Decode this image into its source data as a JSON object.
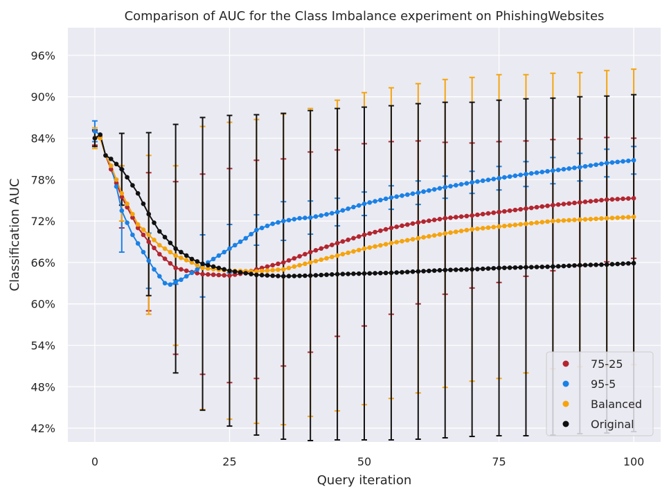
{
  "chart_data": {
    "type": "line",
    "title": "Comparison of AUC for the Class Imbalance experiment on PhishingWebsites",
    "xlabel": "Query iteration",
    "ylabel": "Classification AUC",
    "xlim": [
      -5,
      105
    ],
    "ylim": [
      40,
      100
    ],
    "x_ticks": [
      0,
      25,
      50,
      75,
      100
    ],
    "x_tick_labels": [
      "0",
      "25",
      "50",
      "75",
      "100"
    ],
    "y_ticks": [
      42,
      48,
      54,
      60,
      66,
      72,
      78,
      84,
      90,
      96
    ],
    "y_tick_labels": [
      "42%",
      "48%",
      "54%",
      "60%",
      "66%",
      "72%",
      "78%",
      "84%",
      "90%",
      "96%"
    ],
    "grid": true,
    "legend_position": "bottom-right",
    "errorbar_every": 5,
    "series": [
      {
        "name": "75-25",
        "color": "#b2262f",
        "points": [
          [
            0,
            84.0
          ],
          [
            1,
            84.2
          ],
          [
            2,
            81.5
          ],
          [
            3,
            79.5
          ],
          [
            5,
            75.5
          ],
          [
            8,
            71.0
          ],
          [
            10,
            69.0
          ],
          [
            12,
            67.2
          ],
          [
            15,
            65.2
          ],
          [
            18,
            64.6
          ],
          [
            20,
            64.3
          ],
          [
            25,
            64.1
          ],
          [
            28,
            64.5
          ],
          [
            30,
            65.0
          ],
          [
            35,
            66.0
          ],
          [
            40,
            67.5
          ],
          [
            45,
            68.8
          ],
          [
            50,
            70.0
          ],
          [
            55,
            71.0
          ],
          [
            60,
            71.8
          ],
          [
            65,
            72.4
          ],
          [
            70,
            72.8
          ],
          [
            75,
            73.3
          ],
          [
            80,
            73.8
          ],
          [
            85,
            74.3
          ],
          [
            90,
            74.7
          ],
          [
            95,
            75.1
          ],
          [
            100,
            75.3
          ]
        ],
        "errors": [
          [
            0,
            1.0
          ],
          [
            5,
            4.5
          ],
          [
            10,
            10.0
          ],
          [
            15,
            12.5
          ],
          [
            20,
            14.5
          ],
          [
            25,
            15.5
          ],
          [
            30,
            15.8
          ],
          [
            35,
            15.0
          ],
          [
            40,
            14.5
          ],
          [
            45,
            13.5
          ],
          [
            50,
            13.2
          ],
          [
            55,
            12.5
          ],
          [
            60,
            11.8
          ],
          [
            65,
            11.0
          ],
          [
            70,
            10.5
          ],
          [
            75,
            10.2
          ],
          [
            80,
            9.8
          ],
          [
            85,
            9.5
          ],
          [
            90,
            9.2
          ],
          [
            95,
            9.0
          ],
          [
            100,
            8.7
          ]
        ]
      },
      {
        "name": "95-5",
        "color": "#1a81e5",
        "points": [
          [
            0,
            85.0
          ],
          [
            1,
            84.5
          ],
          [
            2,
            81.5
          ],
          [
            3,
            80.0
          ],
          [
            4,
            77.0
          ],
          [
            5,
            73.5
          ],
          [
            7,
            70.0
          ],
          [
            9,
            67.5
          ],
          [
            11,
            65.0
          ],
          [
            13,
            63.0
          ],
          [
            14,
            62.8
          ],
          [
            16,
            63.5
          ],
          [
            18,
            64.5
          ],
          [
            20,
            65.5
          ],
          [
            22,
            66.5
          ],
          [
            25,
            68.0
          ],
          [
            28,
            69.5
          ],
          [
            30,
            70.7
          ],
          [
            33,
            71.6
          ],
          [
            35,
            72.0
          ],
          [
            38,
            72.4
          ],
          [
            40,
            72.5
          ],
          [
            42,
            72.8
          ],
          [
            45,
            73.3
          ],
          [
            50,
            74.5
          ],
          [
            55,
            75.4
          ],
          [
            60,
            76.1
          ],
          [
            65,
            76.9
          ],
          [
            70,
            77.6
          ],
          [
            75,
            78.2
          ],
          [
            80,
            78.8
          ],
          [
            85,
            79.3
          ],
          [
            90,
            79.8
          ],
          [
            95,
            80.4
          ],
          [
            100,
            80.8
          ]
        ],
        "errors": [
          [
            0,
            1.5
          ],
          [
            5,
            6.0
          ],
          [
            10,
            4.0
          ],
          [
            15,
            0.3
          ],
          [
            20,
            4.5
          ],
          [
            25,
            3.5
          ],
          [
            30,
            2.2
          ],
          [
            35,
            2.8
          ],
          [
            40,
            2.4
          ],
          [
            45,
            2.0
          ],
          [
            50,
            1.7
          ],
          [
            55,
            1.7
          ],
          [
            60,
            1.7
          ],
          [
            65,
            1.6
          ],
          [
            70,
            1.6
          ],
          [
            75,
            1.7
          ],
          [
            80,
            1.8
          ],
          [
            85,
            1.9
          ],
          [
            90,
            2.0
          ],
          [
            95,
            2.0
          ],
          [
            100,
            2.0
          ]
        ]
      },
      {
        "name": "Balanced",
        "color": "#f5a40e",
        "points": [
          [
            0,
            84.0
          ],
          [
            1,
            84.0
          ],
          [
            2,
            81.5
          ],
          [
            3,
            80.0
          ],
          [
            5,
            76.0
          ],
          [
            8,
            71.5
          ],
          [
            10,
            70.0
          ],
          [
            12,
            68.5
          ],
          [
            15,
            67.0
          ],
          [
            18,
            66.0
          ],
          [
            20,
            65.2
          ],
          [
            25,
            64.8
          ],
          [
            30,
            64.7
          ],
          [
            35,
            65.0
          ],
          [
            40,
            66.0
          ],
          [
            45,
            67.0
          ],
          [
            50,
            68.0
          ],
          [
            55,
            68.8
          ],
          [
            60,
            69.5
          ],
          [
            65,
            70.2
          ],
          [
            70,
            70.8
          ],
          [
            75,
            71.2
          ],
          [
            80,
            71.6
          ],
          [
            85,
            72.0
          ],
          [
            90,
            72.2
          ],
          [
            95,
            72.4
          ],
          [
            100,
            72.6
          ]
        ],
        "errors": [
          [
            0,
            1.5
          ],
          [
            5,
            4.0
          ],
          [
            10,
            11.5
          ],
          [
            15,
            13.0
          ],
          [
            20,
            20.5
          ],
          [
            25,
            21.5
          ],
          [
            30,
            22.0
          ],
          [
            35,
            22.5
          ],
          [
            40,
            22.3
          ],
          [
            45,
            22.5
          ],
          [
            50,
            22.6
          ],
          [
            55,
            22.5
          ],
          [
            60,
            22.4
          ],
          [
            65,
            22.3
          ],
          [
            70,
            22.0
          ],
          [
            75,
            22.0
          ],
          [
            80,
            21.6
          ],
          [
            85,
            21.4
          ],
          [
            90,
            21.3
          ],
          [
            95,
            21.4
          ],
          [
            100,
            21.4
          ]
        ]
      },
      {
        "name": "Original",
        "color": "#101010",
        "points": [
          [
            0,
            84.0
          ],
          [
            1,
            84.5
          ],
          [
            2,
            81.5
          ],
          [
            3,
            81.0
          ],
          [
            5,
            79.5
          ],
          [
            8,
            76.0
          ],
          [
            10,
            73.0
          ],
          [
            12,
            70.5
          ],
          [
            15,
            68.0
          ],
          [
            18,
            66.5
          ],
          [
            20,
            65.8
          ],
          [
            25,
            64.8
          ],
          [
            30,
            64.2
          ],
          [
            35,
            64.0
          ],
          [
            40,
            64.1
          ],
          [
            45,
            64.3
          ],
          [
            50,
            64.4
          ],
          [
            55,
            64.5
          ],
          [
            60,
            64.7
          ],
          [
            65,
            64.9
          ],
          [
            70,
            65.0
          ],
          [
            75,
            65.2
          ],
          [
            80,
            65.3
          ],
          [
            85,
            65.4
          ],
          [
            90,
            65.6
          ],
          [
            95,
            65.7
          ],
          [
            100,
            65.9
          ]
        ],
        "errors": [
          [
            0,
            1.2
          ],
          [
            5,
            5.2
          ],
          [
            10,
            11.8
          ],
          [
            15,
            18.0
          ],
          [
            20,
            21.2
          ],
          [
            25,
            22.5
          ],
          [
            30,
            23.2
          ],
          [
            35,
            23.6
          ],
          [
            40,
            23.9
          ],
          [
            45,
            24.0
          ],
          [
            50,
            24.1
          ],
          [
            55,
            24.2
          ],
          [
            60,
            24.3
          ],
          [
            65,
            24.3
          ],
          [
            70,
            24.2
          ],
          [
            75,
            24.3
          ],
          [
            80,
            24.4
          ],
          [
            85,
            24.4
          ],
          [
            90,
            24.4
          ],
          [
            95,
            24.4
          ],
          [
            100,
            24.4
          ]
        ]
      }
    ]
  }
}
